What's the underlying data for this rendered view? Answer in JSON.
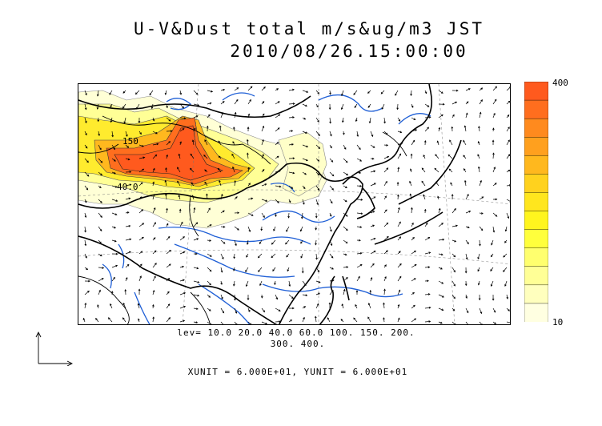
{
  "title_line1": "U-V&Dust total m/s&ug/m3 JST",
  "title_line2": "2010/08/26.15:00:00",
  "map": {
    "contour_labels": [
      "150",
      "40.0"
    ],
    "land_color": "#ffffff",
    "coast_color": "#000000",
    "river_color": "#1f5fd6"
  },
  "colorbar": {
    "max_label": "400",
    "min_label": "10",
    "colors": [
      "#ff5a1e",
      "#ff6e1e",
      "#ff8a1e",
      "#ffa01e",
      "#ffb81e",
      "#ffd21e",
      "#ffe61e",
      "#fff51e",
      "#ffff3c",
      "#ffff6e",
      "#ffff96",
      "#ffffbe",
      "#ffffe1"
    ]
  },
  "levels_line1": "lev= 10.0 20.0 40.0 60.0 100. 150. 200.",
  "levels_line2": "300. 400.",
  "units_line": "XUNIT = 6.000E+01, YUNIT = 6.000E+01"
}
